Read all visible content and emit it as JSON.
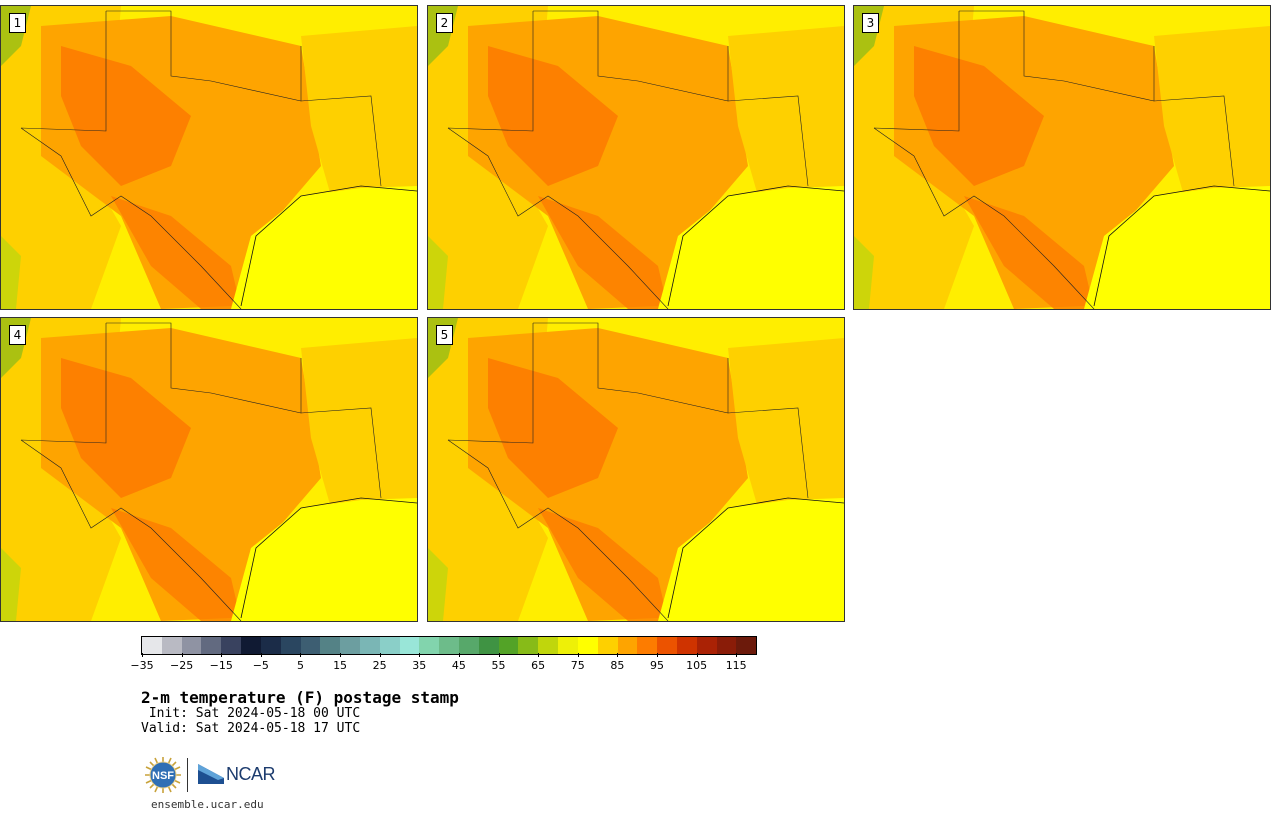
{
  "product": {
    "title": "2-m temperature (F) postage stamp",
    "init": " Init: Sat 2024-05-18 00 UTC",
    "valid": "Valid: Sat 2024-05-18 17 UTC",
    "site": "ensemble.ucar.edu"
  },
  "logos": {
    "nsf": "NSF",
    "ncar": "NCAR"
  },
  "members": [
    {
      "label": "1"
    },
    {
      "label": "2"
    },
    {
      "label": "3"
    },
    {
      "label": "4"
    },
    {
      "label": "5"
    }
  ],
  "colorbar": {
    "min": -35,
    "max": 120,
    "step": 5,
    "tick_labels": [
      "−35",
      "−25",
      "−15",
      "−5",
      "5",
      "15",
      "25",
      "35",
      "45",
      "55",
      "65",
      "75",
      "85",
      "95",
      "105",
      "115"
    ],
    "colors": [
      "#e6e7ea",
      "#b9bac3",
      "#8f93a3",
      "#626a80",
      "#39425f",
      "#101a33",
      "#1b2c48",
      "#2a4660",
      "#3d5e72",
      "#548286",
      "#6c9ea0",
      "#7ab6b5",
      "#8acfc8",
      "#99e6d8",
      "#82d4ad",
      "#6dbc8a",
      "#57a86a",
      "#3f9343",
      "#53a327",
      "#87bb18",
      "#c0d60c",
      "#eef007",
      "#ffff00",
      "#fed000",
      "#fea400",
      "#fd7c00",
      "#ec5300",
      "#cf3300",
      "#aa2205",
      "#8a1c08",
      "#6c1a0b"
    ]
  }
}
